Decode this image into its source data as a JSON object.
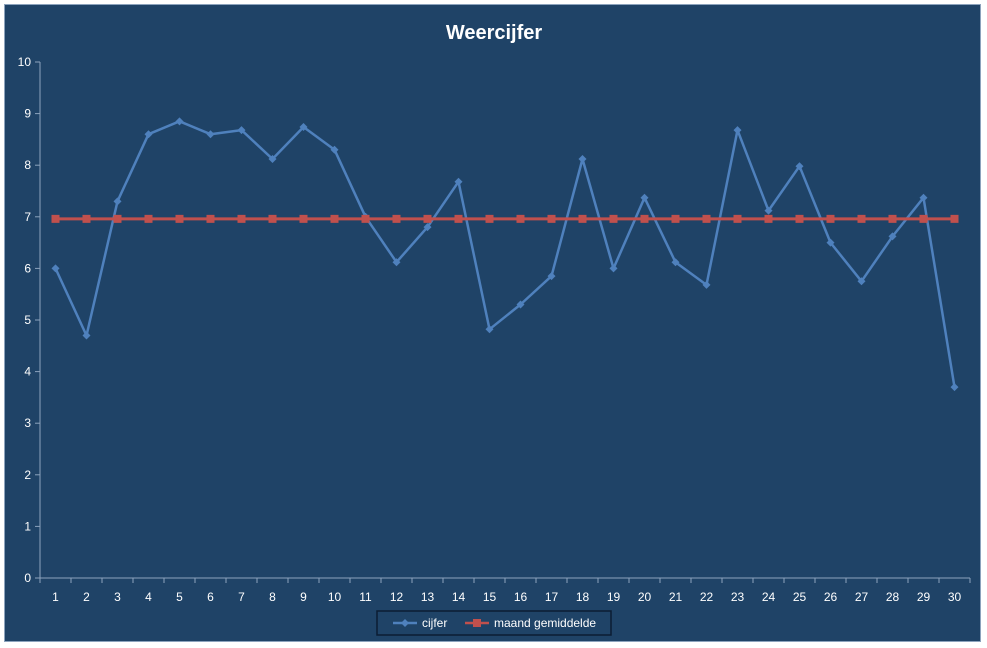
{
  "chart_data": {
    "type": "line",
    "title": "Weercijfer",
    "xlabel": "",
    "ylabel": "",
    "categories": [
      "1",
      "2",
      "3",
      "4",
      "5",
      "6",
      "7",
      "8",
      "9",
      "10",
      "11",
      "12",
      "13",
      "14",
      "15",
      "16",
      "17",
      "18",
      "19",
      "20",
      "21",
      "22",
      "23",
      "24",
      "25",
      "26",
      "27",
      "28",
      "29",
      "30"
    ],
    "ylim": [
      0,
      10
    ],
    "yticks": [
      "0",
      "1",
      "2",
      "3",
      "4",
      "5",
      "6",
      "7",
      "8",
      "9",
      "10"
    ],
    "grid": false,
    "legend_position": "bottom",
    "series": [
      {
        "name": "cijfer",
        "color": "#4f81bd",
        "marker": "diamond",
        "values": [
          6.0,
          4.7,
          7.3,
          8.6,
          8.85,
          8.6,
          8.68,
          8.12,
          8.74,
          8.3,
          7.0,
          6.12,
          6.8,
          7.68,
          4.82,
          5.3,
          5.85,
          8.12,
          6.0,
          7.37,
          6.12,
          5.68,
          8.68,
          7.12,
          7.98,
          6.5,
          5.75,
          6.62,
          7.37,
          3.7
        ]
      },
      {
        "name": "maand gemiddelde",
        "color": "#c0504d",
        "marker": "square",
        "values": [
          6.96,
          6.96,
          6.96,
          6.96,
          6.96,
          6.96,
          6.96,
          6.96,
          6.96,
          6.96,
          6.96,
          6.96,
          6.96,
          6.96,
          6.96,
          6.96,
          6.96,
          6.96,
          6.96,
          6.96,
          6.96,
          6.96,
          6.96,
          6.96,
          6.96,
          6.96,
          6.96,
          6.96,
          6.96,
          6.96
        ]
      }
    ]
  },
  "colors": {
    "background": "#1f4367",
    "axis": "#8ca3bd",
    "text": "#ffffff"
  }
}
